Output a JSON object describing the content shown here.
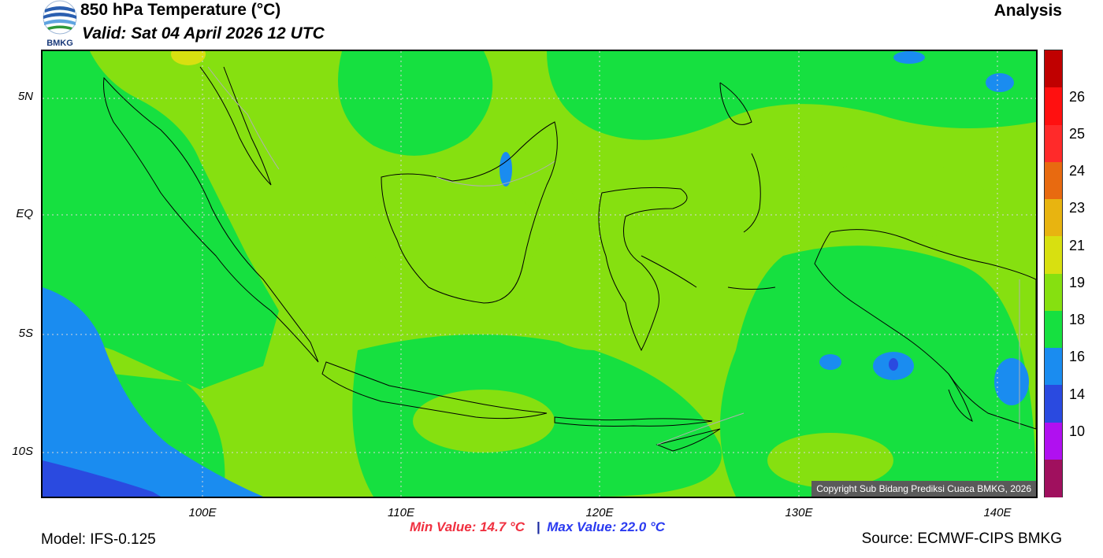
{
  "header": {
    "logo_text": "BMKG",
    "title": "850 hPa Temperature (°C)",
    "valid": "Valid: Sat 04 April 2026 12 UTC",
    "mode": "Analysis"
  },
  "map": {
    "lat_labels": [
      "5N",
      "EQ",
      "5S",
      "10S"
    ],
    "lon_labels": [
      "100E",
      "110E",
      "120E",
      "130E",
      "140E"
    ],
    "copyright": "Copyright Sub Bidang Prediksi Cuaca BMKG, 2026"
  },
  "colorbar": {
    "labels": [
      "26",
      "25",
      "24",
      "23",
      "21",
      "19",
      "18",
      "16",
      "14",
      "10"
    ],
    "colors": [
      "#c00000",
      "#ff1010",
      "#ff2a2a",
      "#e86a10",
      "#e8b410",
      "#d8e010",
      "#86e010",
      "#16e040",
      "#1a8cf0",
      "#2a4ae0",
      "#b010f0",
      "#a0105e"
    ]
  },
  "stats": {
    "min": "Min Value: 14.7 °C",
    "separator": "|",
    "max": "Max Value: 22.0 °C"
  },
  "footer": {
    "model": "Model: IFS-0.125",
    "source": "Source: ECMWF-CIPS BMKG"
  }
}
